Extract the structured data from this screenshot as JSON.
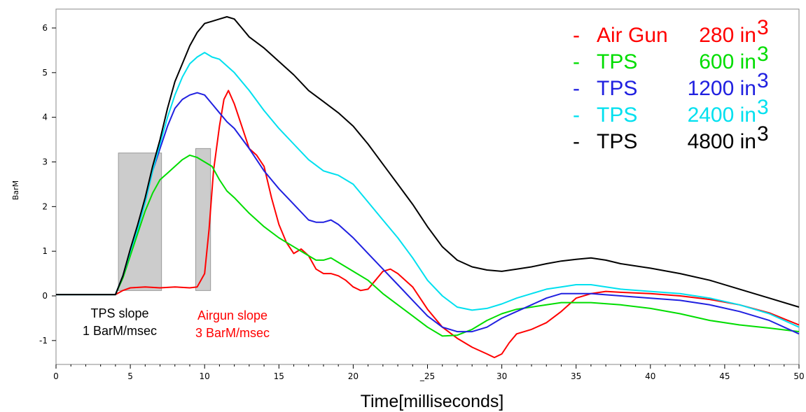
{
  "chart_data": {
    "type": "line",
    "title": "",
    "xlabel": "Time[milliseconds]",
    "ylabel": "BarM",
    "xlim": [
      0,
      50
    ],
    "ylim": [
      -1.5,
      6.4
    ],
    "x_ticks": [
      0,
      5,
      10,
      15,
      20,
      25,
      30,
      35,
      40,
      45,
      50
    ],
    "x_tick_labels": [
      "0",
      "5",
      "10",
      "15",
      "20",
      "_25",
      "30",
      "35",
      "40",
      "45",
      "50"
    ],
    "y_ticks": [
      -1,
      0,
      1,
      2,
      3,
      4,
      5,
      6
    ],
    "y_tick_labels": [
      "-1",
      "0",
      "1",
      "2",
      "3",
      "4",
      "5",
      "6"
    ],
    "grid": false,
    "legend_position": "top-right",
    "series": [
      {
        "name": "Air Gun",
        "volume": "280 in",
        "unit_sup": "3",
        "color": "#ff0000",
        "points": [
          [
            0,
            0.03
          ],
          [
            4,
            0.03
          ],
          [
            4.5,
            0.12
          ],
          [
            5,
            0.18
          ],
          [
            6,
            0.2
          ],
          [
            7,
            0.18
          ],
          [
            8,
            0.2
          ],
          [
            9,
            0.18
          ],
          [
            9.5,
            0.2
          ],
          [
            10,
            0.5
          ],
          [
            10.3,
            1.5
          ],
          [
            10.6,
            2.8
          ],
          [
            11,
            3.8
          ],
          [
            11.3,
            4.4
          ],
          [
            11.6,
            4.6
          ],
          [
            12,
            4.3
          ],
          [
            12.5,
            3.8
          ],
          [
            13,
            3.3
          ],
          [
            13.5,
            3.15
          ],
          [
            14,
            2.9
          ],
          [
            14.5,
            2.2
          ],
          [
            15,
            1.6
          ],
          [
            15.5,
            1.2
          ],
          [
            16,
            0.95
          ],
          [
            16.5,
            1.05
          ],
          [
            17,
            0.9
          ],
          [
            17.5,
            0.6
          ],
          [
            18,
            0.5
          ],
          [
            18.5,
            0.5
          ],
          [
            19,
            0.45
          ],
          [
            19.5,
            0.35
          ],
          [
            20,
            0.2
          ],
          [
            20.5,
            0.12
          ],
          [
            21,
            0.15
          ],
          [
            21.5,
            0.35
          ],
          [
            22,
            0.55
          ],
          [
            22.5,
            0.6
          ],
          [
            23,
            0.5
          ],
          [
            24,
            0.2
          ],
          [
            25,
            -0.3
          ],
          [
            26,
            -0.7
          ],
          [
            27,
            -0.95
          ],
          [
            28,
            -1.15
          ],
          [
            29,
            -1.3
          ],
          [
            29.5,
            -1.38
          ],
          [
            30,
            -1.3
          ],
          [
            30.5,
            -1.05
          ],
          [
            31,
            -0.85
          ],
          [
            32,
            -0.75
          ],
          [
            33,
            -0.6
          ],
          [
            34,
            -0.35
          ],
          [
            35,
            -0.05
          ],
          [
            36,
            0.05
          ],
          [
            37,
            0.1
          ],
          [
            38,
            0.08
          ],
          [
            40,
            0.05
          ],
          [
            42,
            0
          ],
          [
            44,
            -0.08
          ],
          [
            46,
            -0.2
          ],
          [
            48,
            -0.38
          ],
          [
            50,
            -0.65
          ]
        ]
      },
      {
        "name": "TPS",
        "volume": "600 in",
        "unit_sup": "3",
        "color": "#00dd00",
        "points": [
          [
            0,
            0.03
          ],
          [
            4,
            0.03
          ],
          [
            4.5,
            0.4
          ],
          [
            5,
            0.9
          ],
          [
            5.5,
            1.4
          ],
          [
            6,
            1.9
          ],
          [
            6.5,
            2.3
          ],
          [
            7,
            2.6
          ],
          [
            7.5,
            2.75
          ],
          [
            8,
            2.9
          ],
          [
            8.5,
            3.05
          ],
          [
            9,
            3.15
          ],
          [
            9.5,
            3.1
          ],
          [
            10,
            3.0
          ],
          [
            10.5,
            2.9
          ],
          [
            11,
            2.6
          ],
          [
            11.5,
            2.35
          ],
          [
            12,
            2.2
          ],
          [
            13,
            1.85
          ],
          [
            14,
            1.55
          ],
          [
            15,
            1.3
          ],
          [
            16,
            1.1
          ],
          [
            17,
            0.9
          ],
          [
            17.5,
            0.8
          ],
          [
            18,
            0.8
          ],
          [
            18.5,
            0.85
          ],
          [
            19,
            0.75
          ],
          [
            20,
            0.55
          ],
          [
            21,
            0.35
          ],
          [
            22,
            0.05
          ],
          [
            23,
            -0.2
          ],
          [
            24,
            -0.45
          ],
          [
            25,
            -0.7
          ],
          [
            26,
            -0.9
          ],
          [
            27,
            -0.88
          ],
          [
            28,
            -0.75
          ],
          [
            29,
            -0.55
          ],
          [
            30,
            -0.4
          ],
          [
            31,
            -0.3
          ],
          [
            32,
            -0.25
          ],
          [
            33,
            -0.2
          ],
          [
            34,
            -0.15
          ],
          [
            36,
            -0.15
          ],
          [
            38,
            -0.2
          ],
          [
            40,
            -0.28
          ],
          [
            42,
            -0.4
          ],
          [
            44,
            -0.55
          ],
          [
            46,
            -0.65
          ],
          [
            48,
            -0.72
          ],
          [
            50,
            -0.8
          ]
        ]
      },
      {
        "name": "TPS",
        "volume": "1200 in",
        "unit_sup": "3",
        "color": "#2020e0",
        "points": [
          [
            0,
            0.03
          ],
          [
            4,
            0.03
          ],
          [
            4.5,
            0.45
          ],
          [
            5,
            1.0
          ],
          [
            5.5,
            1.5
          ],
          [
            6,
            2.1
          ],
          [
            6.5,
            2.8
          ],
          [
            7,
            3.3
          ],
          [
            7.5,
            3.8
          ],
          [
            8,
            4.2
          ],
          [
            8.5,
            4.4
          ],
          [
            9,
            4.5
          ],
          [
            9.5,
            4.55
          ],
          [
            10,
            4.5
          ],
          [
            10.5,
            4.3
          ],
          [
            11,
            4.1
          ],
          [
            11.5,
            3.9
          ],
          [
            12,
            3.75
          ],
          [
            13,
            3.3
          ],
          [
            14,
            2.8
          ],
          [
            15,
            2.4
          ],
          [
            16,
            2.05
          ],
          [
            17,
            1.7
          ],
          [
            17.5,
            1.65
          ],
          [
            18,
            1.65
          ],
          [
            18.5,
            1.7
          ],
          [
            19,
            1.6
          ],
          [
            20,
            1.3
          ],
          [
            21,
            0.95
          ],
          [
            22,
            0.6
          ],
          [
            23,
            0.25
          ],
          [
            24,
            -0.1
          ],
          [
            25,
            -0.45
          ],
          [
            26,
            -0.7
          ],
          [
            27,
            -0.8
          ],
          [
            28,
            -0.8
          ],
          [
            29,
            -0.7
          ],
          [
            30,
            -0.5
          ],
          [
            31,
            -0.35
          ],
          [
            32,
            -0.2
          ],
          [
            33,
            -0.05
          ],
          [
            34,
            0.05
          ],
          [
            35,
            0.05
          ],
          [
            36,
            0.05
          ],
          [
            38,
            0
          ],
          [
            40,
            -0.05
          ],
          [
            42,
            -0.1
          ],
          [
            44,
            -0.2
          ],
          [
            46,
            -0.35
          ],
          [
            48,
            -0.55
          ],
          [
            50,
            -0.85
          ]
        ]
      },
      {
        "name": "TPS",
        "volume": "2400 in",
        "unit_sup": "3",
        "color": "#00e0ef",
        "points": [
          [
            0,
            0.03
          ],
          [
            4,
            0.03
          ],
          [
            4.5,
            0.45
          ],
          [
            5,
            1.0
          ],
          [
            5.5,
            1.5
          ],
          [
            6,
            2.1
          ],
          [
            6.5,
            2.8
          ],
          [
            7,
            3.4
          ],
          [
            7.5,
            4.0
          ],
          [
            8,
            4.5
          ],
          [
            8.5,
            4.9
          ],
          [
            9,
            5.2
          ],
          [
            9.5,
            5.35
          ],
          [
            10,
            5.45
          ],
          [
            10.5,
            5.35
          ],
          [
            11,
            5.3
          ],
          [
            11.5,
            5.15
          ],
          [
            12,
            5.0
          ],
          [
            13,
            4.6
          ],
          [
            14,
            4.15
          ],
          [
            15,
            3.75
          ],
          [
            16,
            3.4
          ],
          [
            17,
            3.05
          ],
          [
            18,
            2.8
          ],
          [
            18.5,
            2.75
          ],
          [
            19,
            2.7
          ],
          [
            20,
            2.5
          ],
          [
            21,
            2.1
          ],
          [
            22,
            1.7
          ],
          [
            23,
            1.3
          ],
          [
            24,
            0.85
          ],
          [
            25,
            0.35
          ],
          [
            26,
            0
          ],
          [
            27,
            -0.25
          ],
          [
            28,
            -0.32
          ],
          [
            29,
            -0.28
          ],
          [
            30,
            -0.18
          ],
          [
            31,
            -0.05
          ],
          [
            32,
            0.05
          ],
          [
            33,
            0.15
          ],
          [
            34,
            0.2
          ],
          [
            35,
            0.25
          ],
          [
            36,
            0.25
          ],
          [
            38,
            0.15
          ],
          [
            40,
            0.1
          ],
          [
            42,
            0.05
          ],
          [
            44,
            -0.05
          ],
          [
            46,
            -0.2
          ],
          [
            48,
            -0.4
          ],
          [
            50,
            -0.7
          ]
        ]
      },
      {
        "name": "TPS",
        "volume": "4800 in",
        "unit_sup": "3",
        "color": "#000000",
        "points": [
          [
            0,
            0.03
          ],
          [
            4,
            0.03
          ],
          [
            4.5,
            0.45
          ],
          [
            5,
            1.05
          ],
          [
            5.5,
            1.6
          ],
          [
            6,
            2.2
          ],
          [
            6.5,
            2.9
          ],
          [
            7,
            3.5
          ],
          [
            7.5,
            4.2
          ],
          [
            8,
            4.8
          ],
          [
            8.5,
            5.2
          ],
          [
            9,
            5.6
          ],
          [
            9.5,
            5.9
          ],
          [
            10,
            6.1
          ],
          [
            10.5,
            6.15
          ],
          [
            11,
            6.2
          ],
          [
            11.5,
            6.25
          ],
          [
            12,
            6.2
          ],
          [
            12.5,
            6.0
          ],
          [
            13,
            5.8
          ],
          [
            14,
            5.55
          ],
          [
            15,
            5.25
          ],
          [
            16,
            4.95
          ],
          [
            17,
            4.6
          ],
          [
            18,
            4.35
          ],
          [
            19,
            4.1
          ],
          [
            20,
            3.8
          ],
          [
            21,
            3.4
          ],
          [
            22,
            2.95
          ],
          [
            23,
            2.5
          ],
          [
            24,
            2.05
          ],
          [
            25,
            1.55
          ],
          [
            26,
            1.1
          ],
          [
            27,
            0.8
          ],
          [
            28,
            0.65
          ],
          [
            29,
            0.58
          ],
          [
            30,
            0.55
          ],
          [
            31,
            0.6
          ],
          [
            32,
            0.65
          ],
          [
            33,
            0.72
          ],
          [
            34,
            0.78
          ],
          [
            35,
            0.82
          ],
          [
            36,
            0.85
          ],
          [
            37,
            0.8
          ],
          [
            38,
            0.72
          ],
          [
            40,
            0.62
          ],
          [
            42,
            0.5
          ],
          [
            44,
            0.35
          ],
          [
            46,
            0.15
          ],
          [
            48,
            -0.05
          ],
          [
            50,
            -0.25
          ]
        ]
      }
    ],
    "shaded_regions": [
      {
        "x_start": 4.2,
        "x_end": 7.1,
        "y_top": 3.2,
        "color": "#cccccc"
      },
      {
        "x_start": 9.4,
        "x_end": 10.4,
        "y_top": 3.3,
        "color": "#cccccc"
      }
    ],
    "annotations": [
      {
        "lines": [
          "TPS slope",
          "1 BarM/msec"
        ],
        "color": "#000000"
      },
      {
        "lines": [
          "Airgun slope",
          "3 BarM/msec"
        ],
        "color": "#ff0000"
      }
    ]
  }
}
